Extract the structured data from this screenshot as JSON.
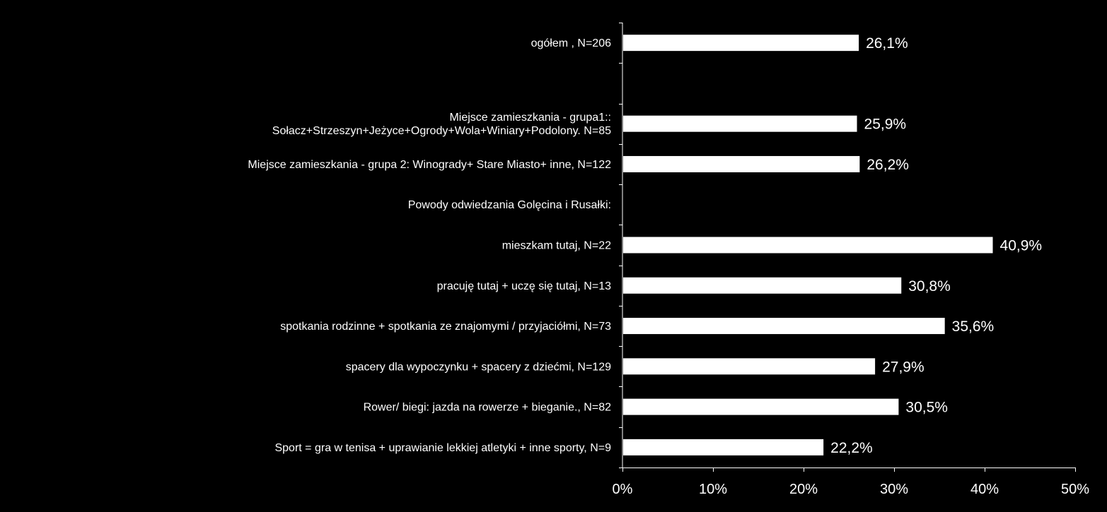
{
  "chart_data": {
    "type": "bar",
    "orientation": "horizontal",
    "title": "",
    "xlabel": "",
    "ylabel": "",
    "xlim": [
      0,
      50
    ],
    "x_ticks": [
      0,
      10,
      20,
      30,
      40,
      50
    ],
    "x_tick_labels": [
      "0%",
      "10%",
      "20%",
      "30%",
      "40%",
      "50%"
    ],
    "grid": false,
    "legend": "none",
    "colors": {
      "background": "#000000",
      "bar": "#ffffff",
      "axis": "#ffffff",
      "text": "#ffffff"
    },
    "categories": [
      {
        "label_lines": [
          "ogółem , N=206"
        ],
        "value": 26.1,
        "value_label": "26,1%"
      },
      {
        "label_lines": [],
        "value": null,
        "value_label": ""
      },
      {
        "label_lines": [
          "Miejsce zamieszkania - grupa1::",
          "Sołacz+Strzeszyn+Jeżyce+Ogrody+Wola+Winiary+Podolony. N=85"
        ],
        "value": 25.9,
        "value_label": "25,9%"
      },
      {
        "label_lines": [
          "Miejsce zamieszkania - grupa 2: Winogrady+ Stare Miasto+ inne, N=122"
        ],
        "value": 26.2,
        "value_label": "26,2%"
      },
      {
        "label_lines": [
          "Powody odwiedzania Golęcina i Rusałki:"
        ],
        "value": null,
        "value_label": ""
      },
      {
        "label_lines": [
          "mieszkam tutaj, N=22"
        ],
        "value": 40.9,
        "value_label": "40,9%"
      },
      {
        "label_lines": [
          "pracuję  tutaj + uczę się tutaj, N=13"
        ],
        "value": 30.8,
        "value_label": "30,8%"
      },
      {
        "label_lines": [
          "spotkania rodzinne + spotkania ze znajomymi / przyjaciółmi, N=73"
        ],
        "value": 35.6,
        "value_label": "35,6%"
      },
      {
        "label_lines": [
          "spacery dla wypoczynku + spacery z dziećmi, N=129"
        ],
        "value": 27.9,
        "value_label": "27,9%"
      },
      {
        "label_lines": [
          "Rower/ biegi: jazda na rowerze + bieganie., N=82"
        ],
        "value": 30.5,
        "value_label": "30,5%"
      },
      {
        "label_lines": [
          "Sport = gra w tenisa +  uprawianie lekkiej atletyki + inne sporty, N=9"
        ],
        "value": 22.2,
        "value_label": "22,2%"
      }
    ]
  }
}
